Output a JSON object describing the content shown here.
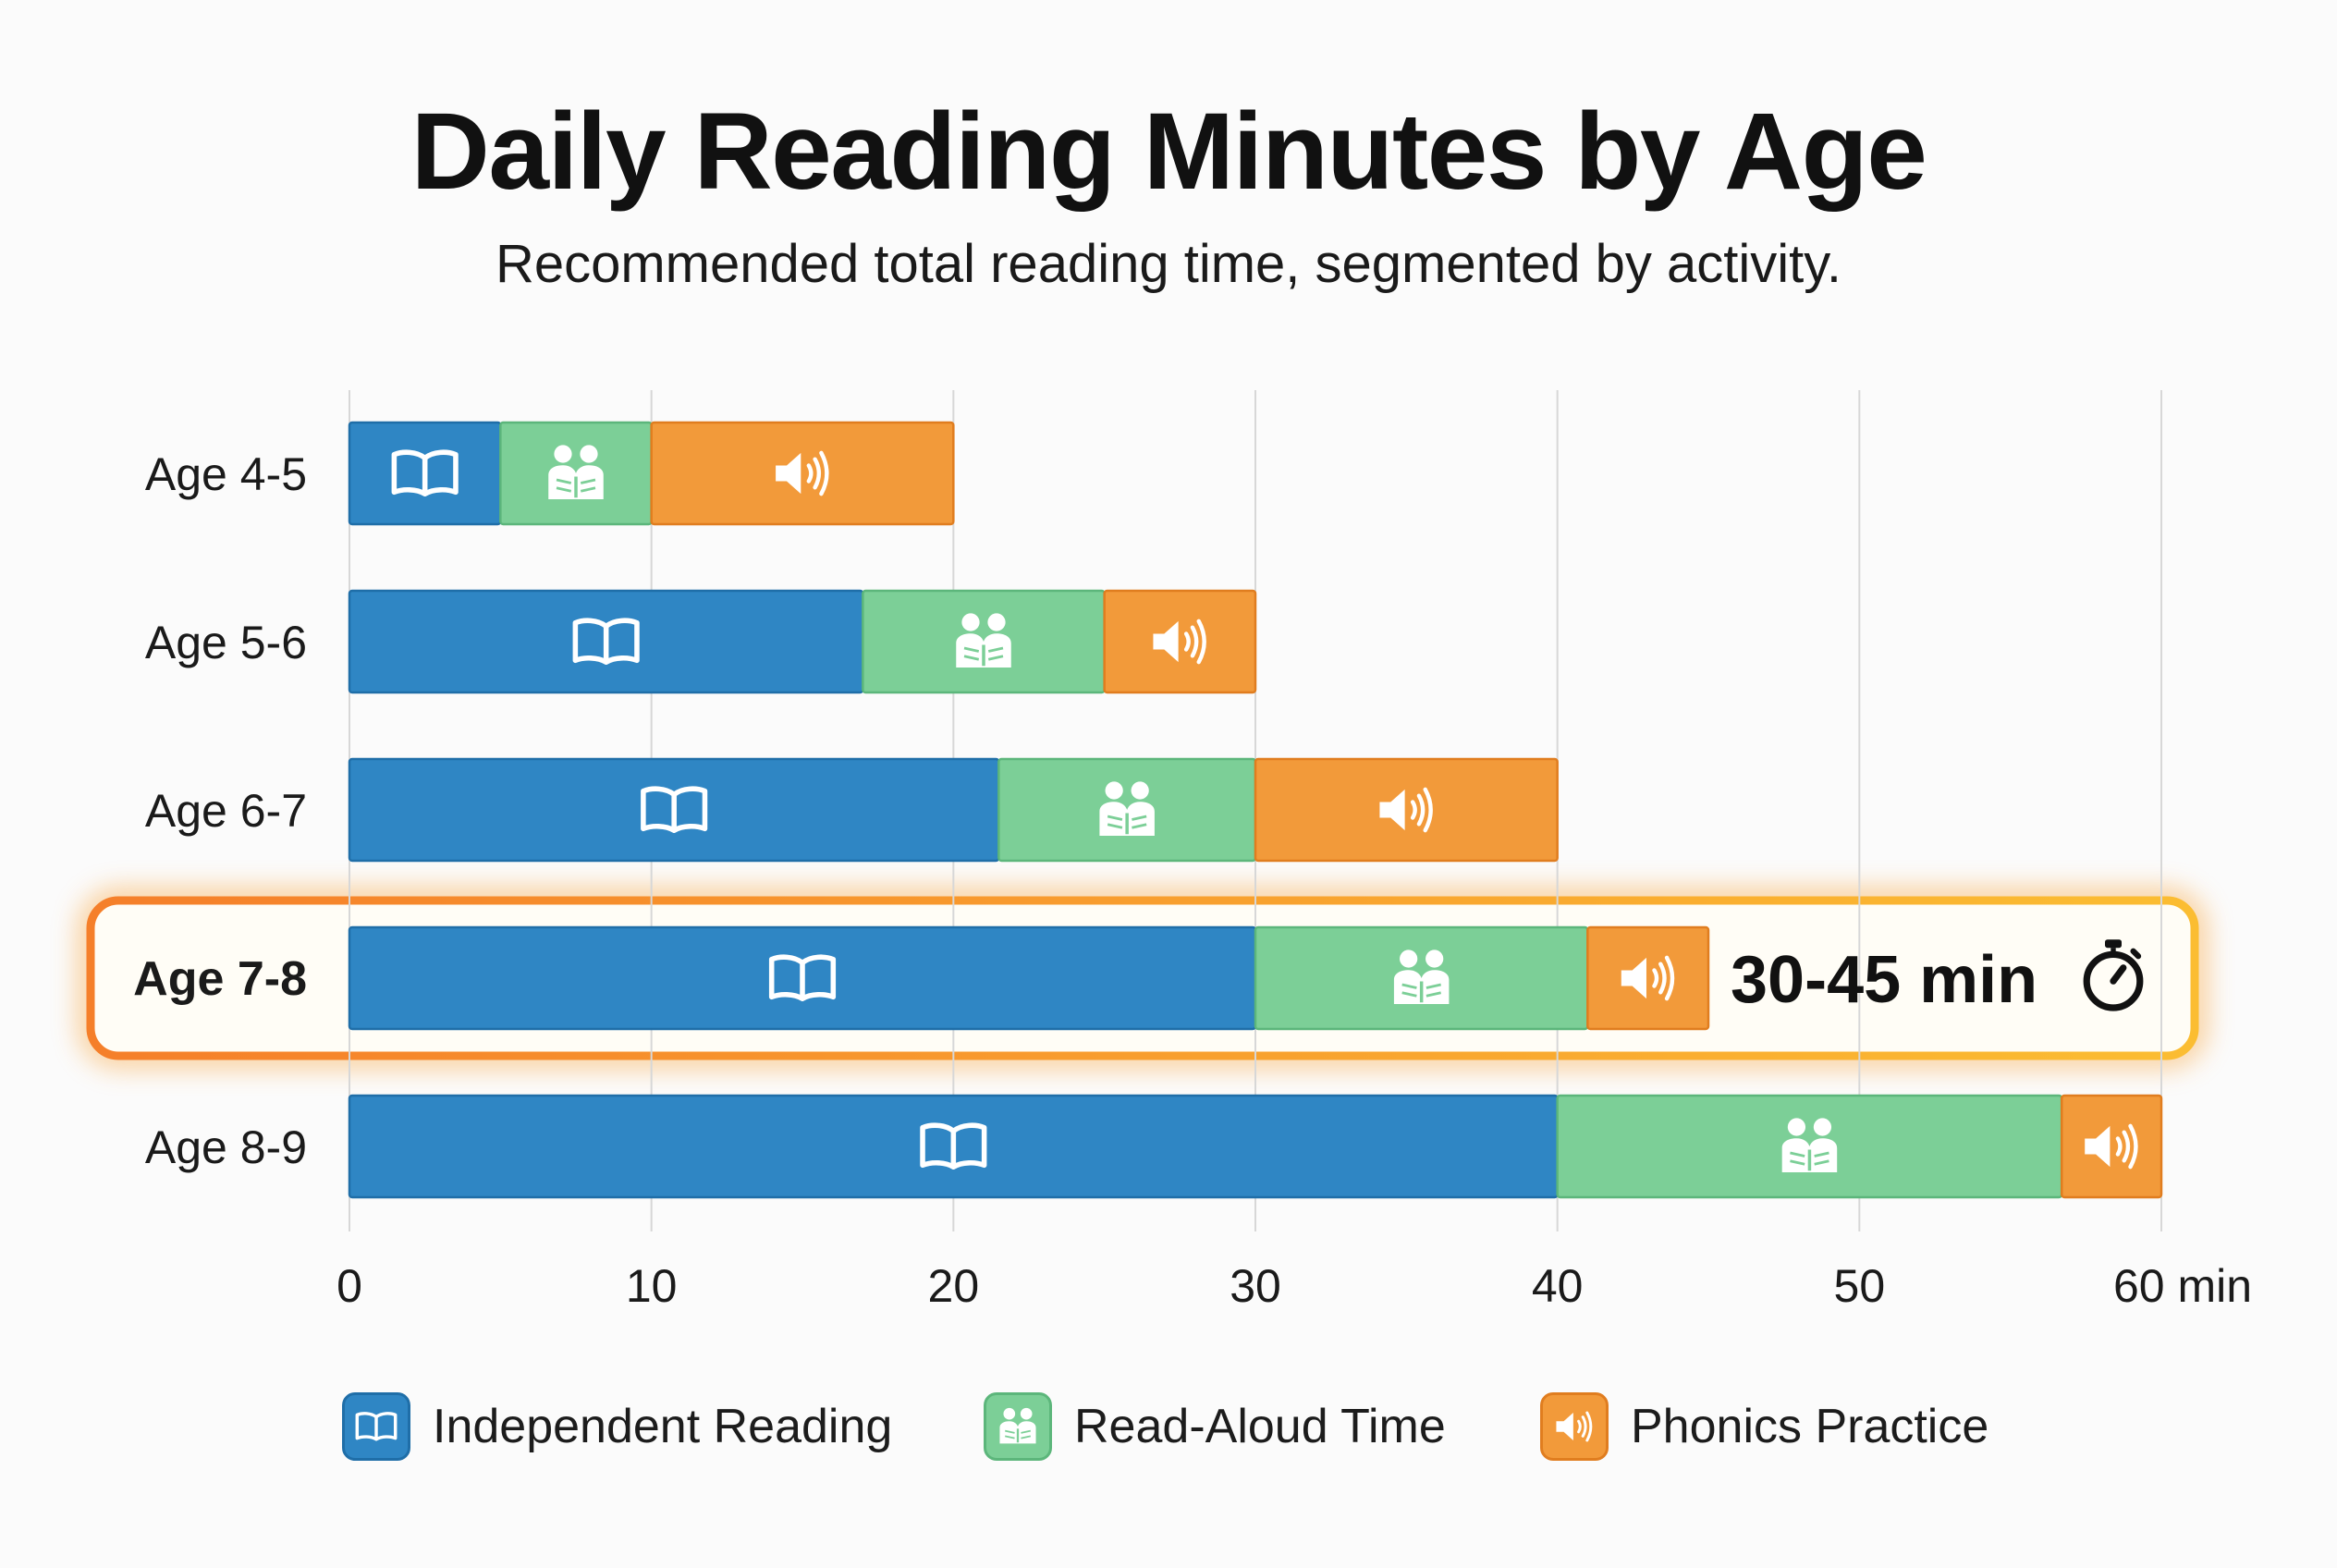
{
  "chart_data": {
    "type": "bar",
    "orientation": "horizontal",
    "stacked": true,
    "title": "Daily Reading Minutes by Age",
    "subtitle": "Recommended total reading time, segmented by activity.",
    "categories": [
      "Age 4-5",
      "Age 5-6",
      "Age 6-7",
      "Age 7-8",
      "Age 8-9"
    ],
    "series": [
      {
        "name": "Independent Reading",
        "icon": "book-icon",
        "color": "#2f86c4",
        "values": [
          5,
          17,
          21.5,
          30,
          40
        ]
      },
      {
        "name": "Read-Aloud Time",
        "icon": "reading-together-icon",
        "color": "#7ccf97",
        "values": [
          5,
          8,
          8.5,
          11,
          16.7
        ]
      },
      {
        "name": "Phonics Practice",
        "icon": "speaker-icon",
        "color": "#f29a3a",
        "values": [
          10,
          5,
          10,
          4,
          3.3
        ]
      }
    ],
    "xlim": [
      0,
      60
    ],
    "xticks": [
      0,
      10,
      20,
      30,
      40,
      50,
      60
    ],
    "xtick_labels": [
      "0",
      "10",
      "20",
      "30",
      "40",
      "50",
      "60 min"
    ],
    "grid": "vertical",
    "legend_position": "bottom",
    "highlight": {
      "category": "Age 7-8",
      "annotation": "30-45 min",
      "annotation_icon": "stopwatch-icon",
      "color": "#f7a530"
    }
  }
}
